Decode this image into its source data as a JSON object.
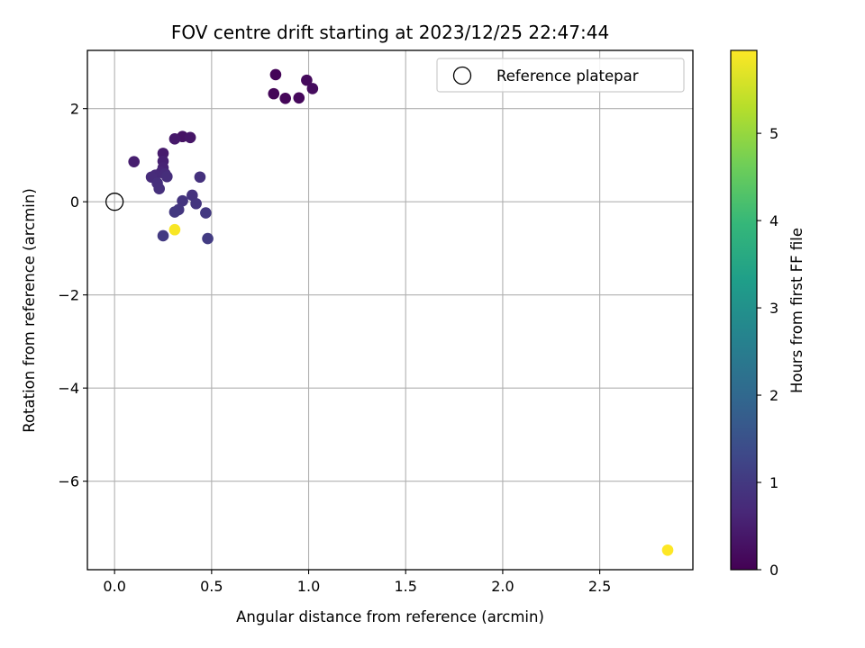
{
  "chart_data": {
    "type": "scatter",
    "title": "FOV centre drift starting at 2023/12/25 22:47:44",
    "xlabel": "Angular distance from reference (arcmin)",
    "ylabel": "Rotation from reference (arcmin)",
    "xlim": [
      -0.14,
      2.98
    ],
    "ylim": [
      -7.9,
      3.25
    ],
    "xticks": [
      0.0,
      0.5,
      1.0,
      1.5,
      2.0,
      2.5
    ],
    "xtick_labels": [
      "0.0",
      "0.5",
      "1.0",
      "1.5",
      "2.0",
      "2.5"
    ],
    "yticks": [
      2,
      0,
      -2,
      -4,
      -6
    ],
    "ytick_labels": [
      "2",
      "0",
      "−2",
      "−4",
      "−6"
    ],
    "grid": true,
    "legend": {
      "position": "top-right",
      "entries": [
        "Reference platepar"
      ]
    },
    "reference_point": {
      "x": 0.0,
      "y": 0.0,
      "label": "Reference platepar"
    },
    "colorbar": {
      "label": "Hours from first FF file",
      "range": [
        0,
        5.95
      ],
      "ticks": [
        0,
        1,
        2,
        3,
        4,
        5
      ],
      "colormap": "viridis",
      "colormap_stops": [
        "#440154",
        "#482878",
        "#3e4989",
        "#31688e",
        "#26828e",
        "#1f9e89",
        "#35b779",
        "#6ece58",
        "#b5de2b",
        "#fde725"
      ]
    },
    "series": [
      {
        "points": [
          {
            "x": 0.83,
            "y": 2.73,
            "c": 0.05
          },
          {
            "x": 0.82,
            "y": 2.32,
            "c": 0.08
          },
          {
            "x": 0.88,
            "y": 2.22,
            "c": 0.1
          },
          {
            "x": 0.95,
            "y": 2.23,
            "c": 0.12
          },
          {
            "x": 0.99,
            "y": 2.61,
            "c": 0.15
          },
          {
            "x": 1.02,
            "y": 2.43,
            "c": 0.18
          },
          {
            "x": 0.35,
            "y": 1.4,
            "c": 0.3
          },
          {
            "x": 0.39,
            "y": 1.38,
            "c": 0.35
          },
          {
            "x": 0.31,
            "y": 1.35,
            "c": 0.4
          },
          {
            "x": 0.25,
            "y": 1.04,
            "c": 0.45
          },
          {
            "x": 0.1,
            "y": 0.86,
            "c": 0.5
          },
          {
            "x": 0.25,
            "y": 0.87,
            "c": 0.55
          },
          {
            "x": 0.25,
            "y": 0.73,
            "c": 0.6
          },
          {
            "x": 0.24,
            "y": 0.63,
            "c": 0.65
          },
          {
            "x": 0.21,
            "y": 0.57,
            "c": 0.7
          },
          {
            "x": 0.26,
            "y": 0.6,
            "c": 0.72
          },
          {
            "x": 0.19,
            "y": 0.53,
            "c": 0.75
          },
          {
            "x": 0.27,
            "y": 0.54,
            "c": 0.78
          },
          {
            "x": 0.22,
            "y": 0.4,
            "c": 0.8
          },
          {
            "x": 0.23,
            "y": 0.28,
            "c": 0.82
          },
          {
            "x": 0.44,
            "y": 0.53,
            "c": 0.85
          },
          {
            "x": 0.4,
            "y": 0.14,
            "c": 0.88
          },
          {
            "x": 0.35,
            "y": 0.02,
            "c": 0.9
          },
          {
            "x": 0.42,
            "y": -0.04,
            "c": 0.93
          },
          {
            "x": 0.33,
            "y": -0.17,
            "c": 0.95
          },
          {
            "x": 0.31,
            "y": -0.22,
            "c": 0.98
          },
          {
            "x": 0.47,
            "y": -0.24,
            "c": 1.0
          },
          {
            "x": 0.25,
            "y": -0.73,
            "c": 1.02
          },
          {
            "x": 0.48,
            "y": -0.79,
            "c": 1.05
          },
          {
            "x": 0.31,
            "y": -0.6,
            "c": 5.9
          },
          {
            "x": 2.85,
            "y": -7.48,
            "c": 5.95
          }
        ]
      }
    ]
  }
}
